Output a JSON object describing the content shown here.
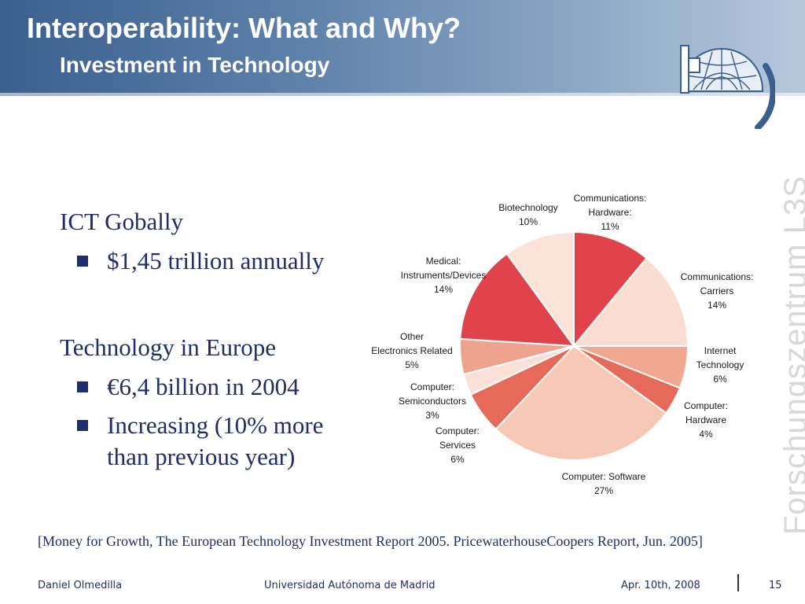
{
  "slide": {
    "title": "Interoperability: What and Why?",
    "subtitle": "Investment in Technology",
    "side_brand": "Forschungszentrum L3S"
  },
  "content": {
    "heading1": "ICT Gobally",
    "bullet1": "$1,45 trillion annually",
    "heading2": "Technology in Europe",
    "bullet2": "€6,4 billion in 2004",
    "bullet3_line1": "Increasing (10% more",
    "bullet3_line2": "than previous year)"
  },
  "chart_data": {
    "type": "pie",
    "title": "",
    "start_angle_deg": 0,
    "direction": "clockwise",
    "slices": [
      {
        "label": [
          "Communications:",
          "Hardware:"
        ],
        "pct": "11%",
        "value": 11,
        "color": "#e0434b"
      },
      {
        "label": [
          "Communications:",
          "Carriers"
        ],
        "pct": "14%",
        "value": 14,
        "color": "#f9ddd3"
      },
      {
        "label": [
          "Internet",
          "Technology"
        ],
        "pct": "6%",
        "value": 6,
        "color": "#f2a890"
      },
      {
        "label": [
          "Computer:",
          "Hardware"
        ],
        "pct": "4%",
        "value": 4,
        "color": "#e66a5a"
      },
      {
        "label": [
          "Computer: Software"
        ],
        "pct": "27%",
        "value": 27,
        "color": "#f7c8b6"
      },
      {
        "label": [
          "Computer:",
          "Services"
        ],
        "pct": "6%",
        "value": 6,
        "color": "#e66a5a"
      },
      {
        "label": [
          "Computer:",
          "Semiconductors"
        ],
        "pct": "3%",
        "value": 3,
        "color": "#fbe0d8"
      },
      {
        "label": [
          "Other",
          "Electronics Related"
        ],
        "pct": "5%",
        "value": 5,
        "color": "#eea38e"
      },
      {
        "label": [
          "Medical:",
          "Instruments/Devices"
        ],
        "pct": "14%",
        "value": 14,
        "color": "#e0434b"
      },
      {
        "label": [
          "Biotechnology"
        ],
        "pct": "10%",
        "value": 10,
        "color": "#fbe3da"
      }
    ]
  },
  "citation": "[Money for Growth, The European Technology Investment Report 2005. PricewaterhouseCoopers Report, Jun. 2005]",
  "footer": {
    "author": "Daniel Olmedilla",
    "institution": "Universidad Autónoma de Madrid",
    "date": "Apr. 10th, 2008",
    "page": "15"
  }
}
